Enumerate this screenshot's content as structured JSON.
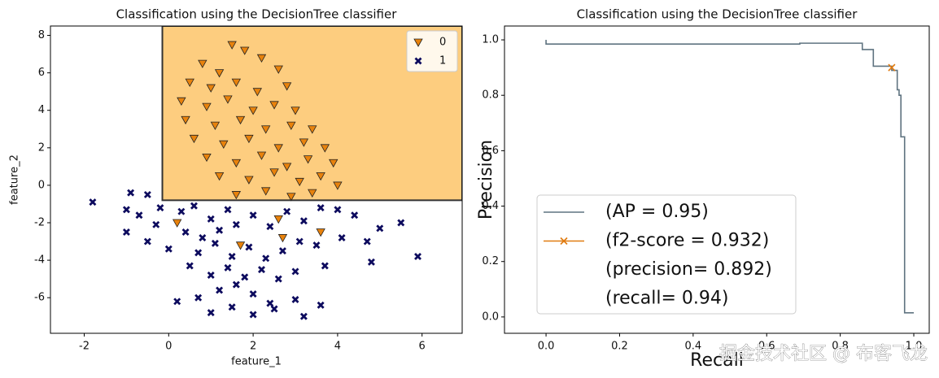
{
  "chart_data": [
    {
      "type": "scatter",
      "title": "Classification using the DecisionTree classifier",
      "x_label": "feature_1",
      "y_label": "feature_2",
      "xlim": [
        -2.8,
        6.95
      ],
      "ylim": [
        -7.9,
        8.5
      ],
      "xticks": [
        -2,
        0,
        2,
        4,
        6
      ],
      "yticks": [
        -6,
        -4,
        -2,
        0,
        2,
        4,
        6,
        8
      ],
      "regions": [
        {
          "color": "#fdcd7f",
          "xlim": [
            -0.15,
            6.95
          ],
          "ylim": [
            -0.8,
            8.5
          ]
        }
      ],
      "legend": "upper right",
      "series": [
        {
          "name": "0",
          "color": "#e8820c",
          "marker": "triangle",
          "x": [
            1.5,
            1.8,
            2.2,
            0.8,
            1.2,
            2.6,
            0.5,
            1.0,
            1.6,
            2.1,
            2.8,
            0.3,
            0.9,
            1.4,
            2.0,
            2.5,
            3.0,
            0.4,
            1.1,
            1.7,
            2.3,
            2.9,
            3.4,
            0.6,
            1.3,
            1.9,
            2.6,
            3.2,
            3.7,
            0.9,
            1.6,
            2.2,
            2.8,
            3.3,
            3.9,
            1.2,
            1.9,
            2.5,
            3.1,
            3.6,
            4.0,
            1.6,
            2.3,
            2.9,
            3.4,
            0.2,
            1.7,
            2.7,
            3.6,
            2.6
          ],
          "y": [
            7.5,
            7.2,
            6.8,
            6.5,
            6.0,
            6.2,
            5.5,
            5.2,
            5.5,
            5.0,
            5.3,
            4.5,
            4.2,
            4.6,
            4.0,
            4.3,
            4.0,
            3.5,
            3.2,
            3.5,
            3.0,
            3.2,
            3.0,
            2.5,
            2.2,
            2.5,
            2.0,
            2.3,
            2.0,
            1.5,
            1.2,
            1.6,
            1.0,
            1.4,
            1.2,
            0.5,
            0.3,
            0.7,
            0.2,
            0.5,
            0.0,
            -0.5,
            -0.3,
            -0.6,
            -0.4,
            -2.0,
            -3.2,
            -2.8,
            -2.5,
            -1.8
          ]
        },
        {
          "name": "1",
          "color": "#0d0b5e",
          "marker": "x",
          "x": [
            -1.8,
            -0.9,
            -0.5,
            -0.2,
            -1.0,
            -0.7,
            -0.3,
            0.3,
            0.6,
            1.0,
            1.4,
            0.4,
            0.8,
            1.2,
            1.6,
            2.0,
            2.4,
            2.8,
            3.2,
            3.6,
            4.0,
            4.4,
            5.0,
            5.5,
            -1.0,
            -0.5,
            0.0,
            0.7,
            1.1,
            1.5,
            1.9,
            2.3,
            2.7,
            3.1,
            3.5,
            4.1,
            4.7,
            5.9,
            4.8,
            0.5,
            1.0,
            1.4,
            1.8,
            2.2,
            2.6,
            3.0,
            3.7,
            0.2,
            0.7,
            1.2,
            1.6,
            2.0,
            2.4,
            1.5,
            2.0,
            2.5,
            3.0,
            3.6,
            1.0,
            3.2
          ],
          "y": [
            -0.9,
            -0.4,
            -0.5,
            -1.2,
            -1.3,
            -1.6,
            -2.1,
            -1.4,
            -1.1,
            -1.8,
            -1.3,
            -2.5,
            -2.8,
            -2.4,
            -2.1,
            -1.6,
            -2.2,
            -1.4,
            -1.9,
            -1.2,
            -1.3,
            -1.6,
            -2.3,
            -2.0,
            -2.5,
            -3.0,
            -3.4,
            -3.6,
            -3.1,
            -3.8,
            -3.3,
            -3.9,
            -3.5,
            -3.0,
            -3.2,
            -2.8,
            -3.0,
            -3.8,
            -4.1,
            -4.3,
            -4.8,
            -4.4,
            -4.9,
            -4.5,
            -5.0,
            -4.6,
            -4.3,
            -6.2,
            -6.0,
            -5.6,
            -5.3,
            -5.8,
            -6.3,
            -6.5,
            -6.9,
            -6.6,
            -6.1,
            -6.4,
            -6.8,
            -7.0
          ]
        }
      ]
    },
    {
      "type": "step",
      "title": "Classification using the DecisionTree classifier",
      "x_label": "Recall",
      "y_label": "Precision",
      "xlim": [
        -0.113,
        1.042
      ],
      "ylim": [
        -0.059,
        1.05
      ],
      "xticks": [
        {
          "value": 0,
          "label": "0.0"
        },
        0.2,
        0.4,
        0.6,
        0.8,
        {
          "value": 1,
          "label": "1.0"
        }
      ],
      "yticks": [
        {
          "value": 0,
          "label": "0.0"
        },
        0.2,
        0.4,
        0.6,
        0.8,
        {
          "value": 1,
          "label": "1.0"
        }
      ],
      "legend": "lower left",
      "series": [
        {
          "name": "(AP = 0.95)",
          "color": "#5f7380",
          "x": [
            0,
            0,
            0.69,
            0.86,
            0.89,
            0.94,
            0.955,
            0.96,
            0.965,
            0.975,
            1.0
          ],
          "y": [
            1.0,
            0.985,
            0.988,
            0.965,
            0.905,
            0.89,
            0.82,
            0.8,
            0.65,
            0.015,
            0.015
          ]
        },
        {
          "name": "(f2-score = 0.932)",
          "color": "#e07b10",
          "marker": "x",
          "x": [
            0.94
          ],
          "y": [
            0.9
          ]
        }
      ],
      "legend_notes": [
        "(precision= 0.892)",
        "(recall= 0.94)"
      ]
    }
  ],
  "watermark": "掘金技术社区 @ 布客飞龙"
}
